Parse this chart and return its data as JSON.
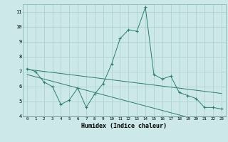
{
  "xlabel": "Humidex (Indice chaleur)",
  "x": [
    0,
    1,
    2,
    3,
    4,
    5,
    6,
    7,
    8,
    9,
    10,
    11,
    12,
    13,
    14,
    15,
    16,
    17,
    18,
    19,
    20,
    21,
    22,
    23
  ],
  "y_main": [
    7.2,
    7.0,
    6.3,
    6.0,
    4.8,
    5.1,
    5.9,
    4.6,
    5.5,
    6.2,
    7.5,
    9.2,
    9.8,
    9.7,
    11.3,
    6.8,
    6.5,
    6.7,
    5.6,
    5.4,
    5.2,
    4.6,
    4.6,
    4.5
  ],
  "y_trend1": [
    7.15,
    7.08,
    7.01,
    6.94,
    6.87,
    6.8,
    6.73,
    6.66,
    6.59,
    6.52,
    6.45,
    6.38,
    6.31,
    6.24,
    6.17,
    6.1,
    6.03,
    5.96,
    5.89,
    5.82,
    5.75,
    5.68,
    5.61,
    5.54
  ],
  "y_trend2": [
    6.8,
    6.65,
    6.5,
    6.35,
    6.2,
    6.05,
    5.9,
    5.75,
    5.6,
    5.45,
    5.3,
    5.15,
    5.0,
    4.85,
    4.7,
    4.55,
    4.4,
    4.25,
    4.1,
    3.95,
    3.8,
    3.65,
    3.5,
    3.35
  ],
  "line_color": "#2e7d6e",
  "bg_color": "#cce8e8",
  "plot_bg": "#cce8e8",
  "grid_color": "#aacece",
  "ylim": [
    4,
    11.5
  ],
  "xlim": [
    -0.5,
    23.5
  ],
  "yticks": [
    4,
    5,
    6,
    7,
    8,
    9,
    10,
    11
  ],
  "xticks": [
    0,
    1,
    2,
    3,
    4,
    5,
    6,
    7,
    8,
    9,
    10,
    11,
    12,
    13,
    14,
    15,
    16,
    17,
    18,
    19,
    20,
    21,
    22,
    23
  ]
}
